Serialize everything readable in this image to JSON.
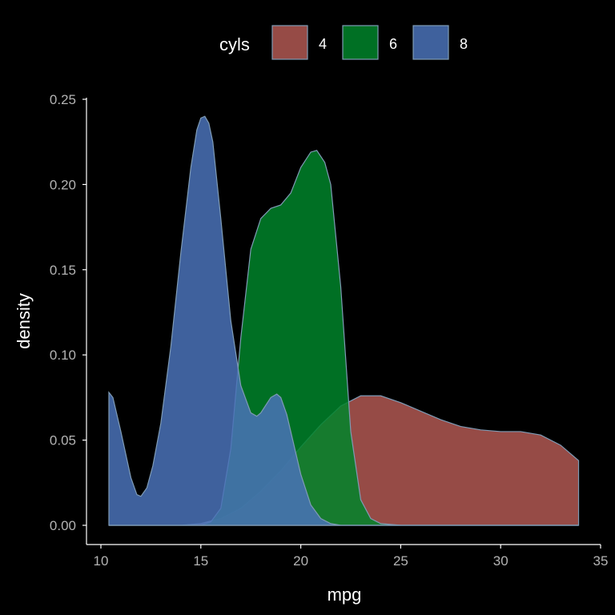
{
  "chart_data": {
    "type": "area",
    "title": "",
    "xlabel": "mpg",
    "ylabel": "density",
    "xlim": [
      10,
      35
    ],
    "ylim": [
      0,
      0.25
    ],
    "xticks": [
      10,
      15,
      20,
      25,
      30,
      35
    ],
    "yticks": [
      0.0,
      0.05,
      0.1,
      0.15,
      0.2,
      0.25
    ],
    "ytick_labels": [
      "0.00",
      "0.05",
      "0.10",
      "0.15",
      "0.20",
      "0.25"
    ],
    "grid": false,
    "legend": {
      "title": "cyls",
      "position": "top"
    },
    "series": [
      {
        "name": "4",
        "color": "#b05852",
        "x": [
          10.4,
          14,
          15,
          16,
          17,
          18,
          19,
          20,
          21,
          22,
          23,
          24,
          25,
          26,
          27,
          28,
          29,
          30,
          31,
          32,
          33,
          33.9
        ],
        "values": [
          0.0,
          0.0,
          0.001,
          0.004,
          0.01,
          0.02,
          0.032,
          0.046,
          0.059,
          0.07,
          0.076,
          0.076,
          0.072,
          0.067,
          0.062,
          0.058,
          0.056,
          0.055,
          0.055,
          0.053,
          0.047,
          0.038
        ]
      },
      {
        "name": "6",
        "color": "#00842a",
        "x": [
          10.4,
          15,
          15.5,
          16,
          16.5,
          17,
          17.5,
          18,
          18.5,
          19,
          19.5,
          20,
          20.5,
          20.8,
          21.2,
          21.5,
          22,
          22.5,
          23,
          23.5,
          24,
          25,
          33.9
        ],
        "values": [
          0.0,
          0.0,
          0.002,
          0.01,
          0.045,
          0.11,
          0.162,
          0.18,
          0.186,
          0.188,
          0.195,
          0.21,
          0.219,
          0.22,
          0.213,
          0.2,
          0.14,
          0.055,
          0.015,
          0.004,
          0.001,
          0.0,
          0.0
        ]
      },
      {
        "name": "8",
        "color": "#4a72b8",
        "x": [
          10.4,
          10.6,
          11,
          11.5,
          11.8,
          12,
          12.3,
          12.6,
          13,
          13.5,
          14,
          14.5,
          14.8,
          15,
          15.2,
          15.4,
          15.6,
          16,
          16.5,
          17,
          17.5,
          17.8,
          18,
          18.5,
          18.8,
          19,
          19.3,
          19.6,
          20,
          20.5,
          21,
          21.5,
          22,
          33.9
        ],
        "values": [
          0.078,
          0.075,
          0.055,
          0.028,
          0.018,
          0.017,
          0.022,
          0.035,
          0.06,
          0.105,
          0.16,
          0.21,
          0.232,
          0.239,
          0.24,
          0.236,
          0.225,
          0.18,
          0.12,
          0.082,
          0.066,
          0.064,
          0.066,
          0.075,
          0.077,
          0.075,
          0.065,
          0.05,
          0.03,
          0.012,
          0.004,
          0.001,
          0.0,
          0.0
        ]
      }
    ]
  }
}
